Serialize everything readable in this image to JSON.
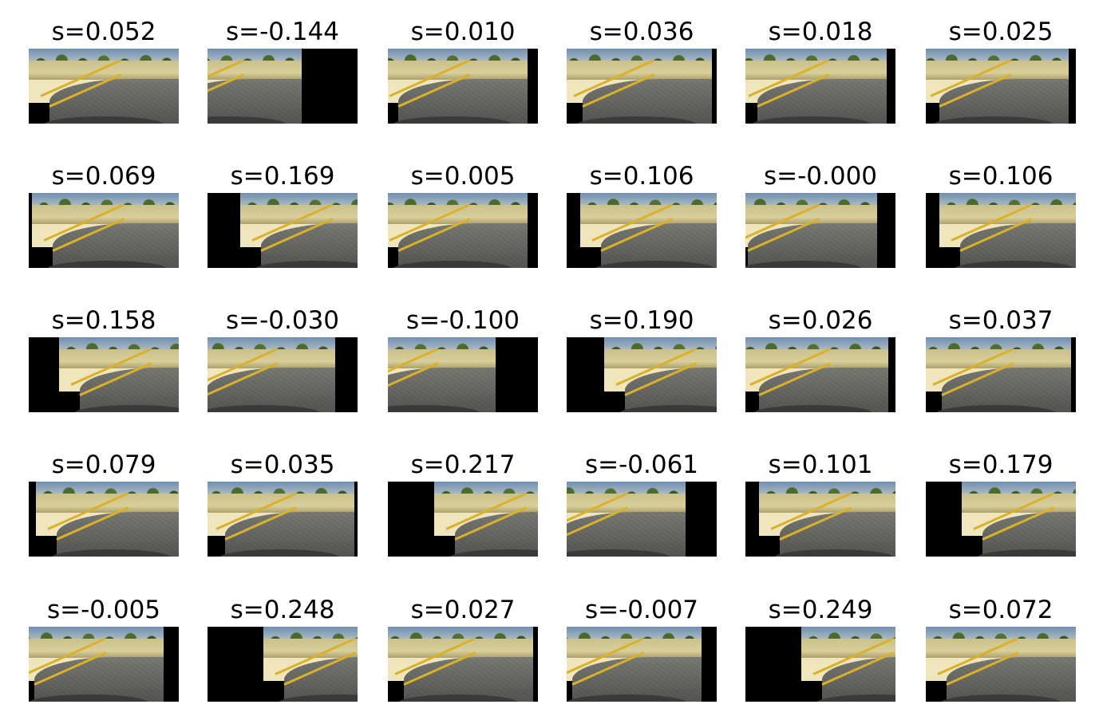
{
  "figure": {
    "rows": [
      [
        {
          "title": "s=0.052",
          "shift": 0.0,
          "pad_left": 0.0,
          "pad_right": 0.0
        },
        {
          "title": "s=-0.144",
          "shift": -0.37,
          "pad_left": 0.0,
          "pad_right": 0.37
        },
        {
          "title": "s=0.010",
          "shift": -0.07,
          "pad_left": 0.0,
          "pad_right": 0.07
        },
        {
          "title": "s=0.036",
          "shift": -0.03,
          "pad_left": 0.0,
          "pad_right": 0.03
        },
        {
          "title": "s=0.018",
          "shift": -0.06,
          "pad_left": 0.0,
          "pad_right": 0.06
        },
        {
          "title": "s=0.025",
          "shift": -0.05,
          "pad_left": 0.0,
          "pad_right": 0.05
        }
      ],
      [
        {
          "title": "s=0.069",
          "shift": 0.02,
          "pad_left": 0.02,
          "pad_right": 0.0
        },
        {
          "title": "s=0.169",
          "shift": 0.22,
          "pad_left": 0.22,
          "pad_right": 0.0
        },
        {
          "title": "s=0.005",
          "shift": -0.07,
          "pad_left": 0.0,
          "pad_right": 0.07
        },
        {
          "title": "s=0.106",
          "shift": 0.09,
          "pad_left": 0.09,
          "pad_right": 0.0
        },
        {
          "title": "s=-0.000",
          "shift": -0.12,
          "pad_left": 0.0,
          "pad_right": 0.12
        },
        {
          "title": "s=0.106",
          "shift": 0.09,
          "pad_left": 0.09,
          "pad_right": 0.0
        }
      ],
      [
        {
          "title": "s=0.158",
          "shift": 0.2,
          "pad_left": 0.2,
          "pad_right": 0.0
        },
        {
          "title": "s=-0.030",
          "shift": -0.15,
          "pad_left": 0.0,
          "pad_right": 0.15
        },
        {
          "title": "s=-0.100",
          "shift": -0.28,
          "pad_left": 0.0,
          "pad_right": 0.28
        },
        {
          "title": "s=0.190",
          "shift": 0.25,
          "pad_left": 0.25,
          "pad_right": 0.0
        },
        {
          "title": "s=0.026",
          "shift": -0.05,
          "pad_left": 0.0,
          "pad_right": 0.05
        },
        {
          "title": "s=0.037",
          "shift": -0.03,
          "pad_left": 0.0,
          "pad_right": 0.03
        }
      ],
      [
        {
          "title": "s=0.079",
          "shift": 0.05,
          "pad_left": 0.05,
          "pad_right": 0.0
        },
        {
          "title": "s=0.035",
          "shift": -0.02,
          "pad_left": 0.0,
          "pad_right": 0.02
        },
        {
          "title": "s=0.217",
          "shift": 0.31,
          "pad_left": 0.31,
          "pad_right": 0.0
        },
        {
          "title": "s=-0.061",
          "shift": -0.21,
          "pad_left": 0.0,
          "pad_right": 0.21
        },
        {
          "title": "s=0.101",
          "shift": 0.09,
          "pad_left": 0.09,
          "pad_right": 0.0
        },
        {
          "title": "s=0.179",
          "shift": 0.24,
          "pad_left": 0.24,
          "pad_right": 0.0
        }
      ],
      [
        {
          "title": "s=-0.005",
          "shift": -0.1,
          "pad_left": 0.0,
          "pad_right": 0.1
        },
        {
          "title": "s=0.248",
          "shift": 0.37,
          "pad_left": 0.37,
          "pad_right": 0.0
        },
        {
          "title": "s=0.027",
          "shift": -0.03,
          "pad_left": 0.0,
          "pad_right": 0.03
        },
        {
          "title": "s=-0.007",
          "shift": -0.1,
          "pad_left": 0.0,
          "pad_right": 0.1
        },
        {
          "title": "s=0.249",
          "shift": 0.37,
          "pad_left": 0.37,
          "pad_right": 0.0
        },
        {
          "title": "s=0.072",
          "shift": 0.0,
          "pad_left": 0.0,
          "pad_right": 0.0
        }
      ]
    ]
  },
  "colors": {
    "background": "#ffffff",
    "padding": "#000000",
    "sky": "#8aa3bb",
    "vegetation": "#4d6a2e",
    "dirt": "#efe6bd",
    "road": "#5b5b58",
    "lane_line": "#d9b12a"
  }
}
